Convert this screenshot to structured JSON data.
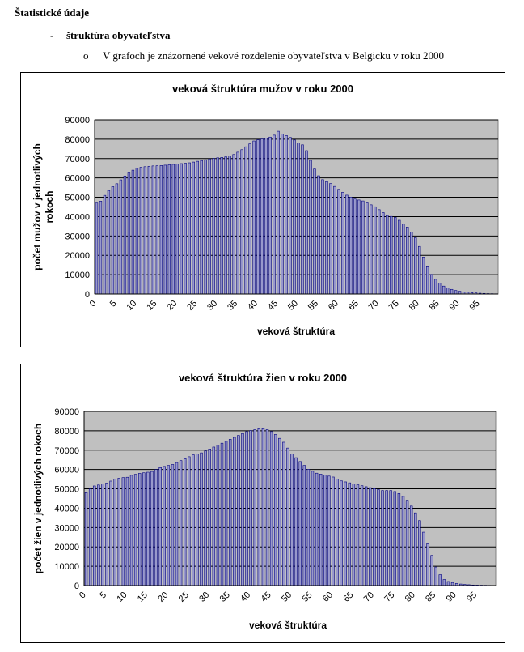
{
  "document": {
    "heading": "Štatistické údaje",
    "bullet_1": {
      "marker": "-",
      "text": "štruktúra obyvateľstva"
    },
    "bullet_2": {
      "marker": "o",
      "text": "V grafoch je znázornené vekové rozdelenie obyvateľstva v Belgicku v roku 2000"
    }
  },
  "colors": {
    "plot_bg": "#c0c0c0",
    "bar_fill": "#9999cc",
    "bar_stroke": "#000080",
    "grid": "#000000"
  },
  "chart_data": [
    {
      "type": "bar",
      "title": "veková štruktúra mužov v roku 2000",
      "xlabel": "veková štruktúra",
      "ylabel_lines": [
        "počet mužov v jednotlivých",
        "rokoch"
      ],
      "ylim": [
        0,
        90000
      ],
      "yticks": [
        0,
        10000,
        20000,
        30000,
        40000,
        50000,
        60000,
        70000,
        80000,
        90000
      ],
      "xtick_labels": [
        "0",
        "5",
        "10",
        "15",
        "20",
        "25",
        "30",
        "35",
        "40",
        "45",
        "50",
        "55",
        "60",
        "65",
        "70",
        "75",
        "80",
        "85",
        "90",
        "95"
      ],
      "grid": true,
      "legend": "none",
      "categories": [
        0,
        1,
        2,
        3,
        4,
        5,
        6,
        7,
        8,
        9,
        10,
        11,
        12,
        13,
        14,
        15,
        16,
        17,
        18,
        19,
        20,
        21,
        22,
        23,
        24,
        25,
        26,
        27,
        28,
        29,
        30,
        31,
        32,
        33,
        34,
        35,
        36,
        37,
        38,
        39,
        40,
        41,
        42,
        43,
        44,
        45,
        46,
        47,
        48,
        49,
        50,
        51,
        52,
        53,
        54,
        55,
        56,
        57,
        58,
        59,
        60,
        61,
        62,
        63,
        64,
        65,
        66,
        67,
        68,
        69,
        70,
        71,
        72,
        73,
        74,
        75,
        76,
        77,
        78,
        79,
        80,
        81,
        82,
        83,
        84,
        85,
        86,
        87,
        88,
        89,
        90,
        91,
        92,
        93,
        94,
        95,
        96,
        97,
        98,
        99
      ],
      "values": [
        47000,
        48000,
        51000,
        53500,
        55500,
        57000,
        59000,
        61000,
        63000,
        64000,
        65000,
        65500,
        65800,
        66000,
        66200,
        66300,
        66400,
        66600,
        66800,
        67000,
        67200,
        67400,
        67600,
        67800,
        68200,
        68600,
        69000,
        69400,
        69800,
        70100,
        70400,
        70600,
        70900,
        71300,
        72100,
        73300,
        74600,
        76100,
        77600,
        79100,
        79700,
        80100,
        80500,
        81100,
        82100,
        84100,
        82600,
        81900,
        80900,
        79600,
        78100,
        77100,
        74100,
        69100,
        64600,
        61100,
        59100,
        58100,
        57100,
        55600,
        54100,
        52600,
        51100,
        50100,
        49100,
        48600,
        48100,
        47100,
        46100,
        45100,
        43600,
        42100,
        40600,
        40100,
        39600,
        38100,
        36100,
        34600,
        32100,
        29100,
        24600,
        19100,
        14100,
        10100,
        7600,
        5600,
        4100,
        3100,
        2400,
        1800,
        1400,
        1100,
        900,
        700,
        550,
        400,
        300,
        200,
        150,
        100
      ]
    },
    {
      "type": "bar",
      "title": "veková štruktúra žien v roku 2000",
      "xlabel": "veková štruktúra",
      "ylabel_lines": [
        "počet žien v jednotlivých rokoch"
      ],
      "ylim": [
        0,
        90000
      ],
      "yticks": [
        0,
        10000,
        20000,
        30000,
        40000,
        50000,
        60000,
        70000,
        80000,
        90000
      ],
      "xtick_labels": [
        "0",
        "5",
        "10",
        "15",
        "20",
        "25",
        "30",
        "35",
        "40",
        "45",
        "50",
        "55",
        "60",
        "65",
        "70",
        "75",
        "80",
        "85",
        "90",
        "95"
      ],
      "grid": true,
      "legend": "none",
      "categories": [
        0,
        1,
        2,
        3,
        4,
        5,
        6,
        7,
        8,
        9,
        10,
        11,
        12,
        13,
        14,
        15,
        16,
        17,
        18,
        19,
        20,
        21,
        22,
        23,
        24,
        25,
        26,
        27,
        28,
        29,
        30,
        31,
        32,
        33,
        34,
        35,
        36,
        37,
        38,
        39,
        40,
        41,
        42,
        43,
        44,
        45,
        46,
        47,
        48,
        49,
        50,
        51,
        52,
        53,
        54,
        55,
        56,
        57,
        58,
        59,
        60,
        61,
        62,
        63,
        64,
        65,
        66,
        67,
        68,
        69,
        70,
        71,
        72,
        73,
        74,
        75,
        76,
        77,
        78,
        79,
        80,
        81,
        82,
        83,
        84,
        85,
        86,
        87,
        88,
        89,
        90,
        91,
        92,
        93,
        94,
        95,
        96,
        97,
        98,
        99
      ],
      "values": [
        48000,
        50000,
        51500,
        52000,
        52500,
        53000,
        54000,
        55000,
        55500,
        55800,
        56000,
        57000,
        57500,
        58000,
        58300,
        58600,
        59000,
        60000,
        61000,
        61600,
        62100,
        62600,
        63600,
        64600,
        65600,
        66600,
        67600,
        68100,
        68600,
        69600,
        70600,
        71600,
        72600,
        73600,
        74600,
        75600,
        76600,
        77600,
        78600,
        79600,
        80100,
        80600,
        81100,
        81100,
        80600,
        79600,
        78100,
        76100,
        74100,
        71100,
        68100,
        66100,
        64100,
        62100,
        60100,
        59100,
        58100,
        57600,
        57100,
        56600,
        56100,
        55100,
        54100,
        53600,
        53100,
        52600,
        52100,
        51600,
        51100,
        50600,
        50100,
        49600,
        49100,
        49100,
        49100,
        48600,
        47600,
        46100,
        44100,
        41100,
        37600,
        33600,
        27600,
        21600,
        15600,
        9600,
        5600,
        3100,
        2100,
        1600,
        1100,
        800,
        600,
        450,
        300,
        250,
        200,
        150,
        100,
        80
      ]
    }
  ]
}
